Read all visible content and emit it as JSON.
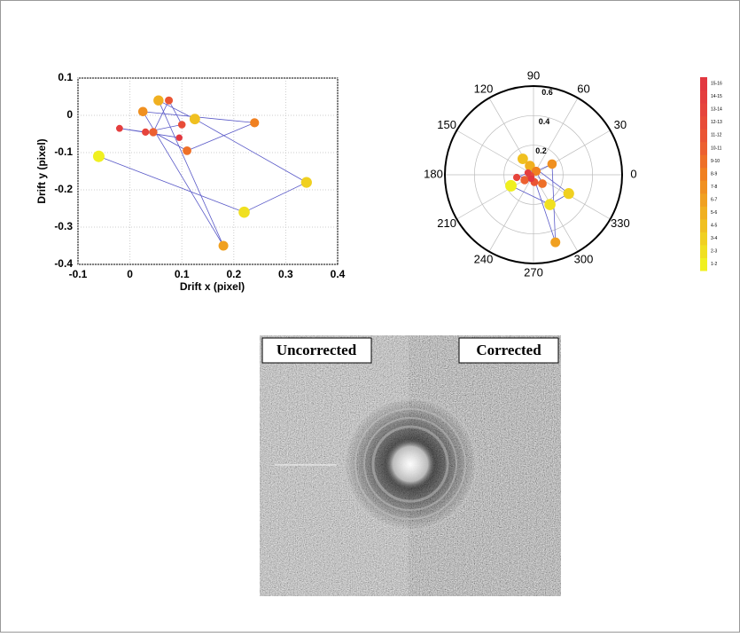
{
  "chart_data": [
    {
      "type": "scatter",
      "xlabel": "Drift x (pixel)",
      "ylabel": "Drift y (pixel)",
      "xlim": [
        -0.1,
        0.4
      ],
      "xticks": [
        -0.1,
        0,
        0.1,
        0.2,
        0.3,
        0.4
      ],
      "ylim": [
        -0.4,
        0.1
      ],
      "yticks": [
        -0.4,
        -0.3,
        -0.2,
        -0.1,
        0,
        0.1
      ],
      "grid": true,
      "line_color": "#5a5ac8",
      "series": [
        {
          "x": [
            -0.06,
            0.22,
            0.34,
            0.125,
            0.055,
            0.18,
            0.025,
            0.24,
            0.11,
            0.045,
            0.075,
            0.1,
            0.03,
            -0.02,
            0.095
          ],
          "y": [
            -0.11,
            -0.26,
            -0.18,
            -0.01,
            0.04,
            -0.35,
            0.01,
            -0.02,
            -0.095,
            -0.045,
            0.04,
            -0.025,
            -0.045,
            -0.035,
            -0.06
          ]
        }
      ]
    },
    {
      "type": "polar",
      "rlim": [
        0,
        0.6
      ],
      "rticks": [
        0.2,
        0.4,
        0.6
      ],
      "thetaticks": [
        0,
        30,
        60,
        90,
        120,
        150,
        180,
        210,
        240,
        270,
        300,
        330
      ],
      "line_color": "#5a5ac8",
      "series": [
        {
          "theta": [
            206,
            299,
            332,
            124,
            112,
            288,
            30,
            53,
            315,
            211,
            277,
            200,
            189,
            160,
            240
          ],
          "r": [
            0.17,
            0.23,
            0.27,
            0.13,
            0.065,
            0.48,
            0.145,
            0.03,
            0.085,
            0.07,
            0.05,
            0.02,
            0.115,
            0.04,
            0.03
          ]
        }
      ]
    }
  ],
  "colorbar": [
    {
      "label": "1-2",
      "color": "#f0f020"
    },
    {
      "label": "2-3",
      "color": "#f0e020"
    },
    {
      "label": "3-4",
      "color": "#f0d020"
    },
    {
      "label": "4-5",
      "color": "#f0c020"
    },
    {
      "label": "5-6",
      "color": "#f0b020"
    },
    {
      "label": "6-7",
      "color": "#f0a020"
    },
    {
      "label": "7-8",
      "color": "#f09020"
    },
    {
      "label": "8-9",
      "color": "#f08020"
    },
    {
      "label": "9-10",
      "color": "#ee7028"
    },
    {
      "label": "10-11",
      "color": "#ec6030"
    },
    {
      "label": "11-12",
      "color": "#ea5534"
    },
    {
      "label": "12-13",
      "color": "#e84c38"
    },
    {
      "label": "13-14",
      "color": "#e6443c"
    },
    {
      "label": "14-15",
      "color": "#e43e3e"
    },
    {
      "label": "15-16",
      "color": "#e23840"
    }
  ],
  "image": {
    "left_label": "Uncorrected",
    "right_label": "Corrected"
  }
}
